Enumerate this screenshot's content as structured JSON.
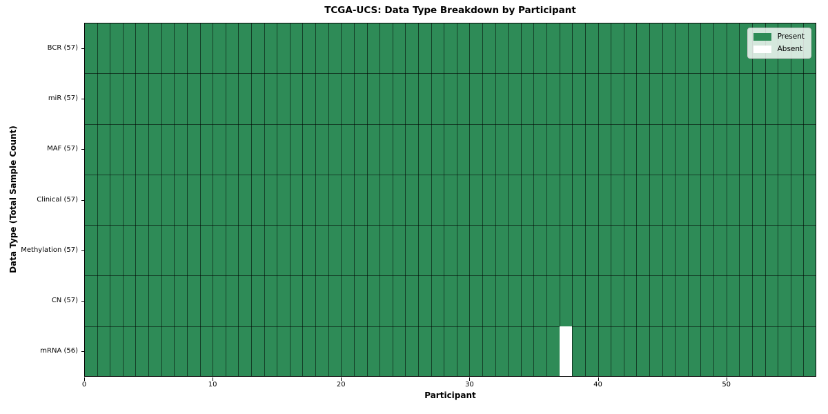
{
  "chart_data": {
    "type": "heatmap",
    "title": "TCGA-UCS: Data Type Breakdown by Participant",
    "xlabel": "Participant",
    "ylabel": "Data Type (Total Sample Count)",
    "x_ticks": [
      0,
      10,
      20,
      30,
      40,
      50
    ],
    "xlim": [
      0,
      57
    ],
    "n_participants": 57,
    "rows": [
      {
        "label": "BCR (57)",
        "data_type": "BCR",
        "total_samples": 57,
        "absent_participants": []
      },
      {
        "label": "miR (57)",
        "data_type": "miR",
        "total_samples": 57,
        "absent_participants": []
      },
      {
        "label": "MAF (57)",
        "data_type": "MAF",
        "total_samples": 57,
        "absent_participants": []
      },
      {
        "label": "Clinical (57)",
        "data_type": "Clinical",
        "total_samples": 57,
        "absent_participants": []
      },
      {
        "label": "Methylation (57)",
        "data_type": "Methylation",
        "total_samples": 57,
        "absent_participants": []
      },
      {
        "label": "CN (57)",
        "data_type": "CN",
        "total_samples": 57,
        "absent_participants": []
      },
      {
        "label": "mRNA (56)",
        "data_type": "mRNA",
        "total_samples": 56,
        "absent_participants": [
          37
        ]
      }
    ],
    "legend": [
      {
        "label": "Present",
        "color": "#2e8b57"
      },
      {
        "label": "Absent",
        "color": "#ffffff"
      }
    ],
    "legend_position": "upper right",
    "grid": true,
    "colors": {
      "present": "#2e8b57",
      "absent": "#ffffff",
      "grid_line": "rgba(0,0,0,0.55)",
      "frame": "#000000",
      "background": "#ffffff"
    }
  }
}
